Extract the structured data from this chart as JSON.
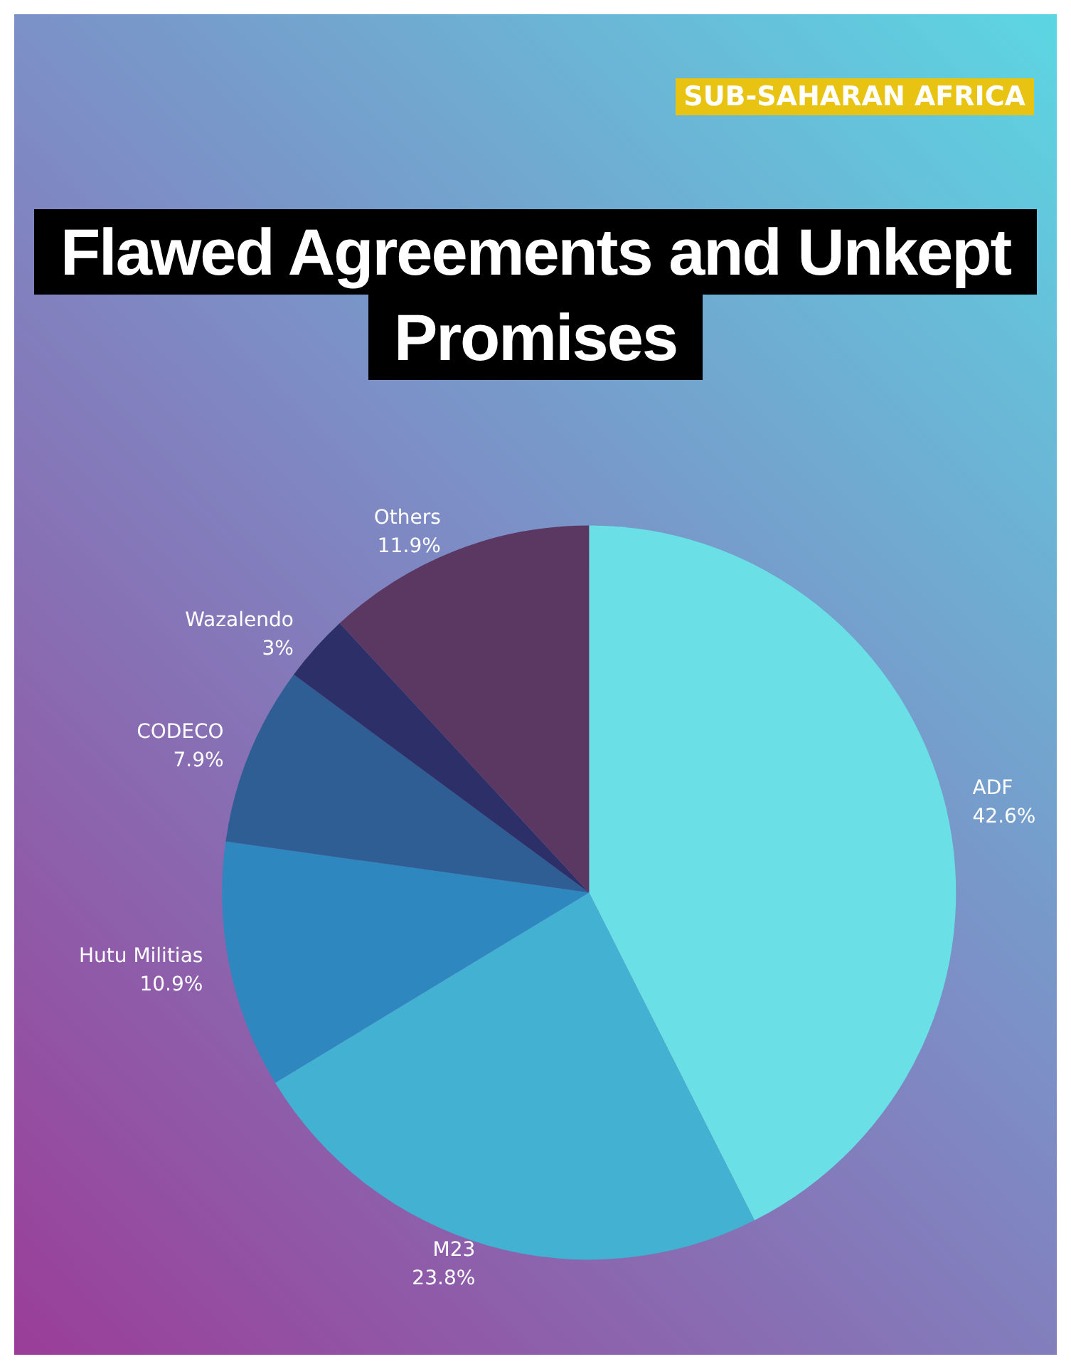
{
  "chart_data": {
    "type": "pie",
    "title": "Flawed Agreements and Unkept Promises",
    "subtitle": "SUB-SAHARAN AFRICA",
    "categories": [
      "ADF",
      "M23",
      "Hutu Militias",
      "CODECO",
      "Wazalendo",
      "Others"
    ],
    "values": [
      42.6,
      23.8,
      10.9,
      7.9,
      3,
      11.9
    ],
    "value_labels": [
      "42.6%",
      "23.8%",
      "10.9%",
      "7.9%",
      "3%",
      "11.9%"
    ],
    "colors": [
      "#6ae0e6",
      "#42b1d2",
      "#2e88bf",
      "#2e5e94",
      "#2d3068",
      "#5a3862"
    ],
    "legend": false
  }
}
